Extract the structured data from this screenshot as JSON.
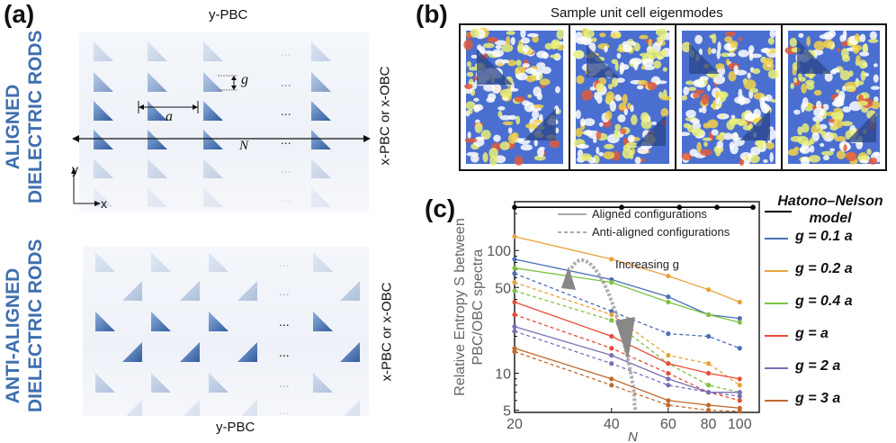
{
  "panel_a": {
    "label": "(a)",
    "aligned": {
      "title_line1": "ALIGNED",
      "title_line2": "DIELECTRIC RODS",
      "top_edge": "y-PBC",
      "right_edge": "x-PBC or x-OBC",
      "g_label": "g",
      "a_label": "a",
      "n_label": "N",
      "axis_x": "x",
      "axis_y": "y",
      "ellipsis": "..."
    },
    "anti_aligned": {
      "title_line1": "ANTI-ALIGNED",
      "title_line2": "DIELECTRIC RODS",
      "bottom_edge": "y-PBC",
      "right_edge": "x-PBC or x-OBC",
      "ellipsis": "..."
    }
  },
  "panel_b": {
    "label": "(b)",
    "title": "Sample unit cell eigenmodes"
  },
  "panel_c": {
    "label": "(c)",
    "chart_data": {
      "type": "line",
      "scale": "log-log",
      "xlabel": "N",
      "ylabel_line1": "Relative Entropy S between",
      "ylabel_line2": "PBC/OBC spectra",
      "x": [
        20,
        40,
        60,
        80,
        100
      ],
      "xlim": [
        20,
        115
      ],
      "ylim": [
        4.8,
        250
      ],
      "x_ticks": [
        "20",
        "40",
        "60",
        "80",
        "100"
      ],
      "y_ticks": [
        {
          "value": 5,
          "label": "5"
        },
        {
          "value": 10,
          "label": "10"
        },
        {
          "value": 50,
          "label": "50"
        },
        {
          "value": 100,
          "label": "100"
        }
      ],
      "annotation": "Increasing g",
      "legend_inner": [
        {
          "label": "Aligned configurations",
          "style": "solid"
        },
        {
          "label": "Anti-aligned configurations",
          "style": "dashed"
        }
      ],
      "hatano_nelson": {
        "label_line1": "Hatono–Nelson",
        "label_line2": "model",
        "color": "#000000",
        "x": [
          20,
          43,
          65,
          85,
          110
        ],
        "y": [
          225,
          225,
          225,
          225,
          225
        ]
      },
      "series": [
        {
          "name": "g = 0.1 a",
          "color": "#4b6fb5",
          "aligned": {
            "x": [
              20,
              40,
              60,
              80,
              100
            ],
            "y": [
              85,
              58,
              42,
              30,
              28
            ]
          },
          "anti": {
            "x": [
              20,
              40,
              60,
              80,
              100
            ],
            "y": [
              65,
              32,
              21,
              20,
              16
            ]
          }
        },
        {
          "name": "g = 0.2 a",
          "color": "#e8a23a",
          "aligned": {
            "x": [
              20,
              40,
              60,
              80,
              100
            ],
            "y": [
              130,
              85,
              62,
              48,
              38
            ]
          },
          "anti": {
            "x": [
              20,
              40,
              60,
              80,
              100
            ],
            "y": [
              55,
              30,
              14,
              12,
              8
            ]
          }
        },
        {
          "name": "g = 0.4 a",
          "color": "#7fc241",
          "aligned": {
            "x": [
              20,
              40,
              60,
              80,
              100
            ],
            "y": [
              72,
              55,
              38,
              30,
              26
            ]
          },
          "anti": {
            "x": [
              20,
              40,
              60,
              80,
              100
            ],
            "y": [
              47,
              27,
              12,
              8,
              7
            ]
          }
        },
        {
          "name": "g = a",
          "color": "#e84b37",
          "aligned": {
            "x": [
              20,
              40,
              60,
              80,
              100
            ],
            "y": [
              38,
              20,
              12,
              10,
              9
            ]
          },
          "anti": {
            "x": [
              20,
              40,
              60,
              80,
              100
            ],
            "y": [
              30,
              16,
              10,
              7,
              6
            ]
          }
        },
        {
          "name": "g = 2 a",
          "color": "#7a6fb5",
          "aligned": {
            "x": [
              20,
              40,
              60,
              80,
              100
            ],
            "y": [
              24,
              14,
              9,
              7,
              7
            ]
          },
          "anti": {
            "x": [
              20,
              40,
              60,
              80,
              100
            ],
            "y": [
              22,
              12,
              8,
              7,
              6.5
            ]
          }
        },
        {
          "name": "g = 3 a",
          "color": "#c1692c",
          "aligned": {
            "x": [
              20,
              40,
              60,
              80,
              100
            ],
            "y": [
              16,
              9,
              6,
              5.5,
              5.2
            ]
          },
          "anti": {
            "x": [
              20,
              40,
              60,
              80,
              100
            ],
            "y": [
              15,
              8,
              5.5,
              5,
              4.9
            ]
          }
        }
      ]
    }
  }
}
